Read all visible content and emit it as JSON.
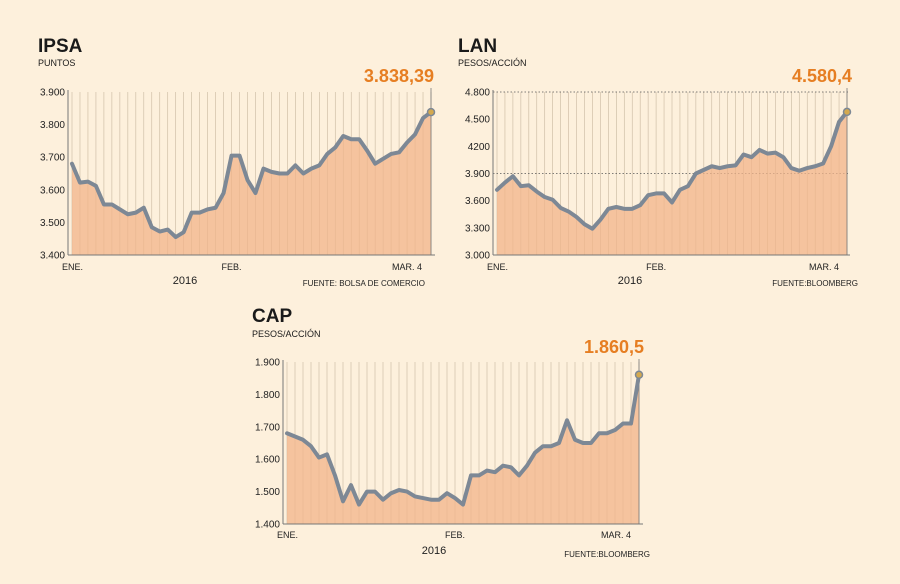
{
  "chart_data": [
    {
      "type": "area",
      "title": "IPSA",
      "ylabel": "PUNTOS",
      "callout": "3.838,39",
      "source": "FUENTE: BOLSA DE COMERCIO",
      "year": "2016",
      "ylim": [
        3400,
        3900
      ],
      "yticks": [
        3400,
        3500,
        3600,
        3700,
        3800,
        3900
      ],
      "ytick_labels": [
        "3.400",
        "3.500",
        "3.600",
        "3.700",
        "3.800",
        "3.900"
      ],
      "xtick_labels": [
        {
          "label": "ENE.",
          "index": 0
        },
        {
          "label": "FEB.",
          "index": 20
        },
        {
          "label": "MAR. 4",
          "index": 42
        }
      ],
      "values": [
        3680,
        3622,
        3625,
        3612,
        3555,
        3555,
        3540,
        3525,
        3530,
        3545,
        3485,
        3472,
        3478,
        3455,
        3470,
        3530,
        3530,
        3540,
        3545,
        3590,
        3705,
        3705,
        3630,
        3590,
        3665,
        3655,
        3650,
        3650,
        3675,
        3650,
        3665,
        3675,
        3710,
        3730,
        3765,
        3755,
        3755,
        3720,
        3680,
        3695,
        3710,
        3715,
        3745,
        3770,
        3820,
        3838.39
      ],
      "reference_lines": []
    },
    {
      "type": "area",
      "title": "LAN",
      "ylabel": "PESOS/ACCIÓN",
      "callout": "4.580,4",
      "source": "FUENTE:BLOOMBERG",
      "year": "2016",
      "ylim": [
        3000,
        4800
      ],
      "yticks": [
        3000,
        3300,
        3600,
        3900,
        4200,
        4500,
        4800
      ],
      "ytick_labels": [
        "3.000",
        "3.300",
        "3.600",
        "3.900",
        "4200",
        "4.500",
        "4.800"
      ],
      "xtick_labels": [
        {
          "label": "ENE.",
          "index": 0
        },
        {
          "label": "FEB.",
          "index": 20
        },
        {
          "label": "MAR. 4",
          "index": 43
        }
      ],
      "values": [
        3720,
        3800,
        3870,
        3760,
        3770,
        3700,
        3640,
        3610,
        3520,
        3480,
        3420,
        3340,
        3290,
        3390,
        3510,
        3530,
        3510,
        3510,
        3550,
        3660,
        3680,
        3680,
        3580,
        3720,
        3760,
        3900,
        3940,
        3980,
        3960,
        3980,
        3990,
        4110,
        4080,
        4160,
        4120,
        4130,
        4080,
        3960,
        3930,
        3960,
        3980,
        4010,
        4200,
        4470,
        4580.4
      ],
      "reference_lines": [
        3900,
        4800
      ]
    },
    {
      "type": "area",
      "title": "CAP",
      "ylabel": "PESOS/ACCIÓN",
      "callout": "1.860,5",
      "source": "FUENTE:BLOOMBERG",
      "year": "2016",
      "ylim": [
        1400,
        1900
      ],
      "yticks": [
        1400,
        1500,
        1600,
        1700,
        1800,
        1900
      ],
      "ytick_labels": [
        "1.400",
        "1.500",
        "1.600",
        "1.700",
        "1.800",
        "1.900"
      ],
      "xtick_labels": [
        {
          "label": "ENE.",
          "index": 0
        },
        {
          "label": "FEB.",
          "index": 21
        },
        {
          "label": "MAR. 4",
          "index": 43
        }
      ],
      "values": [
        1680,
        1670,
        1660,
        1640,
        1605,
        1615,
        1550,
        1470,
        1520,
        1460,
        1500,
        1500,
        1475,
        1495,
        1505,
        1500,
        1485,
        1480,
        1475,
        1475,
        1495,
        1480,
        1460,
        1550,
        1550,
        1565,
        1560,
        1580,
        1575,
        1550,
        1580,
        1620,
        1640,
        1640,
        1650,
        1720,
        1660,
        1650,
        1650,
        1680,
        1680,
        1690,
        1710,
        1710,
        1860.5
      ],
      "reference_lines": []
    }
  ]
}
